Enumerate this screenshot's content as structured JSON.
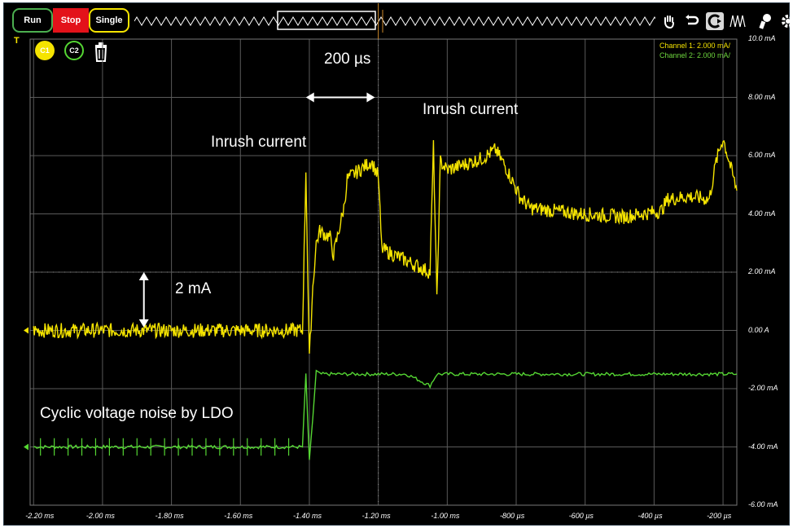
{
  "toolbar": {
    "run_label": "Run",
    "stop_label": "Stop",
    "single_label": "Single",
    "trigger_marker": "T"
  },
  "channels": {
    "c1_label": "C1",
    "c2_label": "C2"
  },
  "legend": {
    "channel1": "Channel 1: 2.000 mA/",
    "channel2": "Channel 2: 2.000 mA/"
  },
  "annotations": {
    "time_span": "200 µs",
    "inrush_1": "Inrush current",
    "inrush_2": "Inrush current",
    "amplitude": "2 mA",
    "noise": "Cyclic voltage noise by LDO"
  },
  "colors": {
    "channel1": "#f5e400",
    "channel2": "#55d633",
    "background": "#000000",
    "grid": "#5a5a5a",
    "trigger_line": "#d08a2a"
  },
  "icons": [
    "hand-pan-icon",
    "undo-icon",
    "zoom-cursor-icon",
    "waveform-icon",
    "probe-icon",
    "settings-gear-icon",
    "trash-icon"
  ],
  "chart_data": {
    "type": "line",
    "x_ticks": [
      "-2.20 ms",
      "-2.00 ms",
      "-1.80 ms",
      "-1.60 ms",
      "-1.40 ms",
      "-1.20 ms",
      "-1.00 ms",
      "-800 µs",
      "-600 µs",
      "-400 µs",
      "-200 µs"
    ],
    "y_ticks": [
      "10.0 mA",
      "8.00 mA",
      "6.00 mA",
      "4.00 mA",
      "2.00 mA",
      "0.00 A",
      "-2.00 mA",
      "-4.00 mA",
      "-6.00 mA"
    ],
    "xlim_ms": [
      -2.21,
      -0.16
    ],
    "ylim_mA": [
      -6.0,
      10.0
    ],
    "grid": true,
    "series": [
      {
        "name": "Channel 1",
        "x_ms": [
          -2.2,
          -1.42,
          -1.41,
          -1.4,
          -1.39,
          -1.38,
          -1.37,
          -1.34,
          -1.33,
          -1.3,
          -1.29,
          -1.22,
          -1.2,
          -1.19,
          -1.05,
          -1.04,
          -1.03,
          -1.02,
          -1.0,
          -0.9,
          -0.86,
          -0.83,
          -0.79,
          -0.76,
          -0.61,
          -0.49,
          -0.38,
          -0.36,
          -0.3,
          -0.24,
          -0.22,
          -0.2,
          -0.16
        ],
        "y_mA": [
          0.0,
          0.0,
          5.5,
          -1.0,
          1.5,
          3.0,
          3.4,
          3.2,
          2.6,
          4.2,
          5.2,
          5.8,
          5.3,
          2.8,
          2.0,
          6.3,
          1.0,
          5.8,
          5.5,
          5.9,
          6.2,
          5.6,
          4.6,
          4.2,
          4.0,
          3.9,
          4.1,
          4.5,
          4.6,
          4.5,
          5.8,
          6.6,
          4.8
        ]
      },
      {
        "name": "Channel 2",
        "x_ms": [
          -2.2,
          -1.42,
          -1.41,
          -1.4,
          -1.39,
          -1.38,
          -1.37,
          -1.2,
          -1.12,
          -1.1,
          -1.05,
          -1.03,
          -1.02,
          -0.16
        ],
        "y_mA": [
          -4.0,
          -4.0,
          -1.5,
          -4.5,
          -3.0,
          -1.4,
          -1.5,
          -1.5,
          -1.5,
          -1.6,
          -1.9,
          -1.5,
          -1.5,
          -1.5
        ]
      }
    ]
  }
}
